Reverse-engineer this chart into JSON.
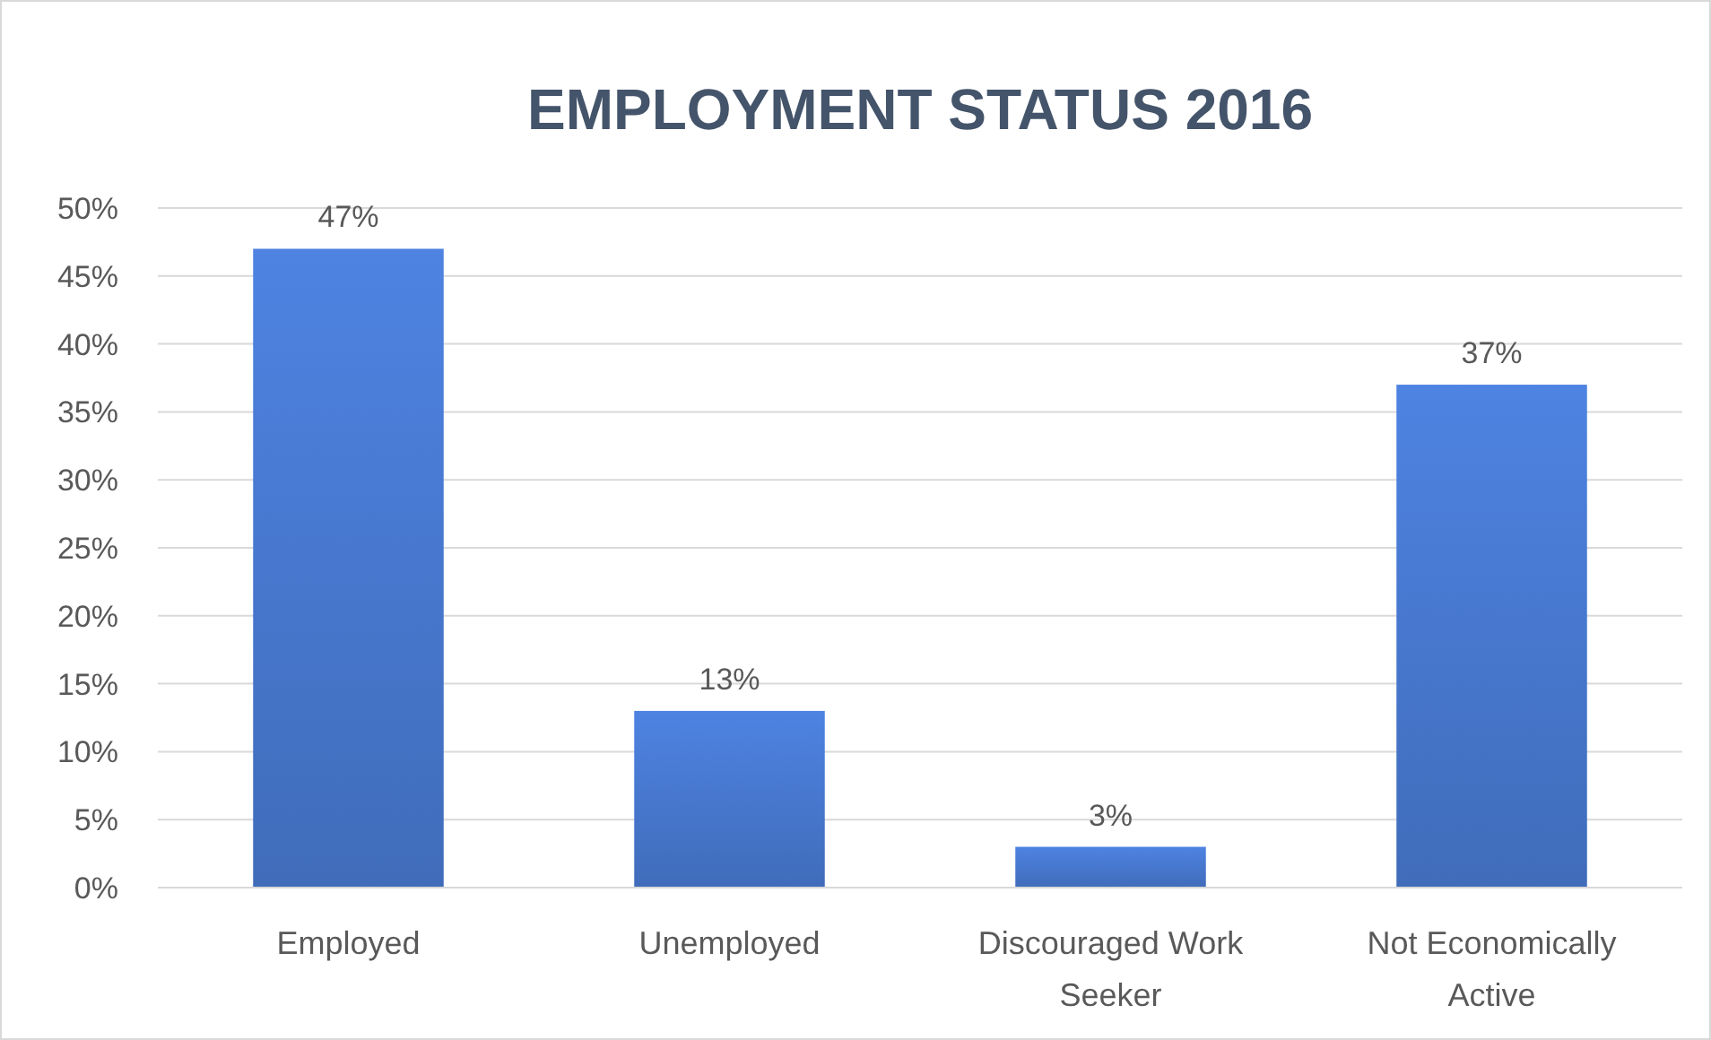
{
  "chart_data": {
    "type": "bar",
    "title": "EMPLOYMENT STATUS 2016",
    "categories": [
      "Employed",
      "Unemployed",
      "Discouraged Work Seeker",
      "Not Economically Active"
    ],
    "values": [
      47,
      13,
      3,
      37
    ],
    "value_labels": [
      "47%",
      "13%",
      "3%",
      "37%"
    ],
    "color": "#4472c4",
    "ylim": [
      0,
      50
    ],
    "yticks": [
      {
        "value": 0,
        "label": "0%"
      },
      {
        "value": 5,
        "label": "5%"
      },
      {
        "value": 10,
        "label": "10%"
      },
      {
        "value": 15,
        "label": "15%"
      },
      {
        "value": 20,
        "label": "20%"
      },
      {
        "value": 25,
        "label": "25%"
      },
      {
        "value": 30,
        "label": "30%"
      },
      {
        "value": 35,
        "label": "35%"
      },
      {
        "value": 40,
        "label": "40%"
      },
      {
        "value": 45,
        "label": "45%"
      },
      {
        "value": 50,
        "label": "50%"
      }
    ],
    "grid": "y"
  }
}
